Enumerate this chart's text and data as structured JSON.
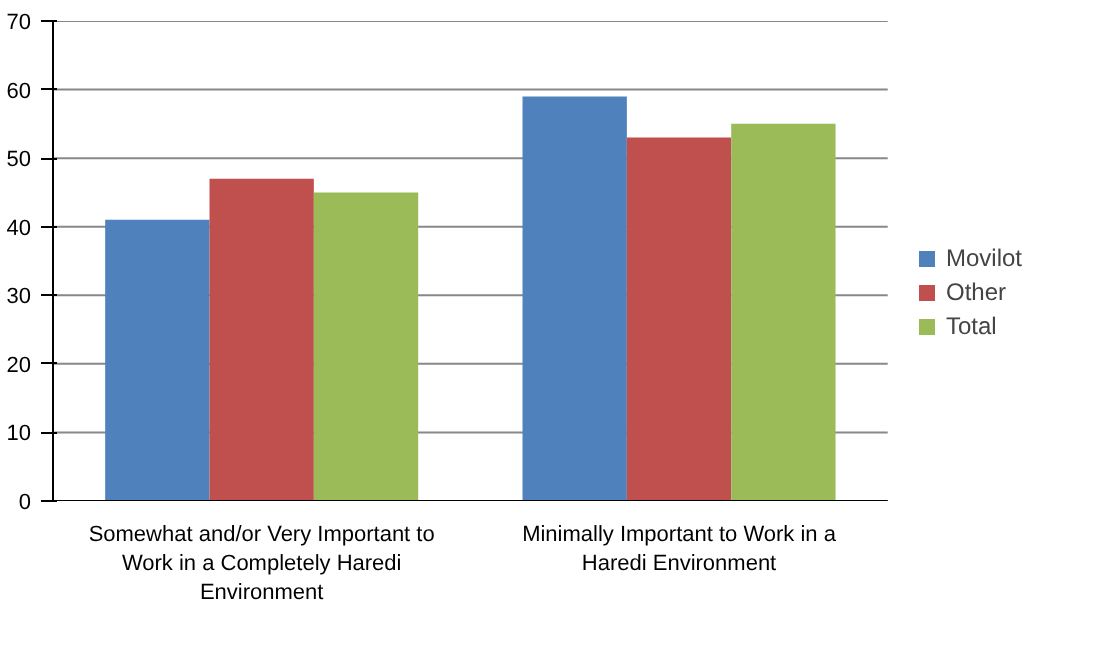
{
  "chart_data": {
    "type": "bar",
    "categories": [
      "Somewhat and/or Very Important to Work in a Completely Haredi Environment",
      "Minimally Important to Work in a Haredi Environment"
    ],
    "series": [
      {
        "name": "Movilot",
        "color": "#4f81bd",
        "values": [
          41,
          59
        ]
      },
      {
        "name": "Other",
        "color": "#c0504d",
        "values": [
          47,
          53
        ]
      },
      {
        "name": "Total",
        "color": "#9bbb59",
        "values": [
          45,
          55
        ]
      }
    ],
    "ylim": [
      0,
      70
    ],
    "yticks": [
      0,
      10,
      20,
      30,
      40,
      50,
      60,
      70
    ],
    "grid": "y",
    "legend": "right"
  }
}
